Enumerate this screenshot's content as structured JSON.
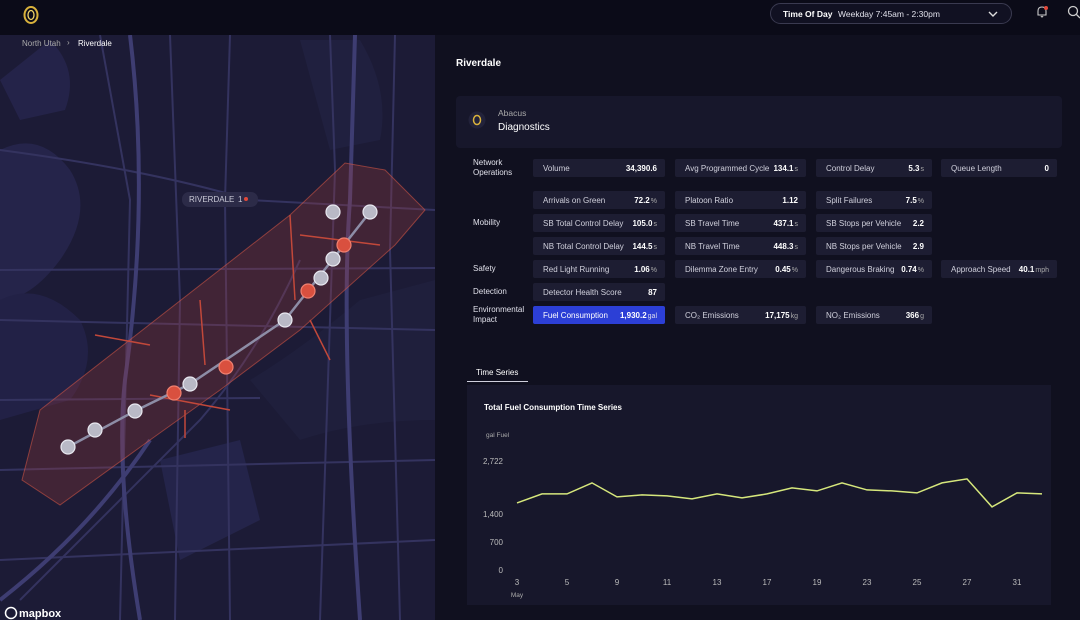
{
  "header": {
    "time_of_day_label": "Time Of Day",
    "time_of_day_value": "Weekday 7:45am - 2:30pm"
  },
  "breadcrumb": [
    "North Utah",
    "Riverdale"
  ],
  "map": {
    "place_label": "RIVERDALE",
    "place_count": "1",
    "attribution": "mapbox"
  },
  "panel": {
    "title": "Riverdale"
  },
  "card": {
    "org": "Abacus",
    "title": "Diagnostics"
  },
  "diagnostics": {
    "groups": [
      {
        "label": "Network Operations",
        "rows": [
          [
            {
              "name": "Volume",
              "value": "34,390.6"
            },
            {
              "name": "Avg Programmed Cycle",
              "value": "134.1",
              "unit": "s"
            },
            {
              "name": "Control Delay",
              "value": "5.3",
              "unit": "s"
            },
            {
              "name": "Queue Length",
              "value": "0"
            }
          ]
        ]
      },
      {
        "label": "Mobility",
        "rows": [
          [
            {
              "name": "Arrivals on Green",
              "value": "72.2",
              "unit": "%"
            },
            {
              "name": "Platoon Ratio",
              "value": "1.12"
            },
            {
              "name": "Split Failures",
              "value": "7.5",
              "unit": "%"
            }
          ],
          [
            {
              "name": "SB Total Control Delay",
              "value": "105.0",
              "unit": "s"
            },
            {
              "name": "SB Travel Time",
              "value": "437.1",
              "unit": "s"
            },
            {
              "name": "SB Stops per Vehicle",
              "value": "2.2"
            }
          ],
          [
            {
              "name": "NB Total Control Delay",
              "value": "144.5",
              "unit": "s"
            },
            {
              "name": "NB Travel Time",
              "value": "448.3",
              "unit": "s"
            },
            {
              "name": "NB Stops per Vehicle",
              "value": "2.9"
            }
          ]
        ]
      },
      {
        "label": "Safety",
        "rows": [
          [
            {
              "name": "Red Light Running",
              "value": "1.06",
              "unit": "%"
            },
            {
              "name": "Dilemma Zone Entry",
              "value": "0.45",
              "unit": "%"
            },
            {
              "name": "Dangerous Braking",
              "value": "0.74",
              "unit": "%"
            },
            {
              "name": "Approach Speed",
              "value": "40.1",
              "unit": "mph"
            }
          ]
        ]
      },
      {
        "label": "Detection",
        "rows": [
          [
            {
              "name": "Detector Health Score",
              "value": "87"
            }
          ]
        ]
      },
      {
        "label": "Environmental Impact",
        "rows": [
          [
            {
              "name": "Fuel Consumption",
              "value": "1,930.2",
              "unit": "gal",
              "active": true
            },
            {
              "name": "CO₂ Emissions",
              "value": "17,175",
              "unit": "kg"
            },
            {
              "name": "NO₂ Emissions",
              "value": "366",
              "unit": "g"
            }
          ]
        ]
      }
    ]
  },
  "tabs": [
    "Time Series"
  ],
  "chart_data": {
    "type": "line",
    "title": "Total Fuel Consumption Time Series",
    "y_label": "gal Fuel",
    "x_label": "May",
    "categories": [
      "3",
      null,
      "5",
      null,
      "9",
      null,
      "11",
      null,
      "13",
      null,
      "17",
      null,
      "19",
      null,
      "23",
      null,
      "25",
      null,
      "27",
      null,
      "31",
      null
    ],
    "values": [
      1675,
      1900,
      1900,
      2175,
      1825,
      1875,
      1850,
      1775,
      1900,
      1800,
      1900,
      2050,
      1975,
      2175,
      2000,
      1975,
      1925,
      2175,
      2275,
      1575,
      1925,
      1900
    ],
    "color": "#d6e77c",
    "ylim": [
      0,
      2722
    ],
    "yticks": [
      0,
      700,
      {
        "value": 1400,
        "label": "1,400"
      },
      {
        "value": 2722,
        "label": "2,722"
      }
    ],
    "grid": false
  }
}
